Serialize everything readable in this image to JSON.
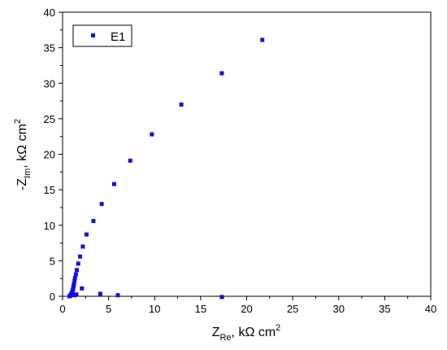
{
  "chart_data": {
    "type": "scatter",
    "title": "",
    "xlabel": {
      "main": "Z",
      "sub": "Re",
      "rest": ", kΩ cm",
      "sup": "2"
    },
    "ylabel": {
      "main": "-Z",
      "sub": "Im",
      "rest": ", kΩ cm",
      "sup": "2"
    },
    "xlim": [
      0,
      40
    ],
    "ylim": [
      0,
      40
    ],
    "xticks": [
      0,
      5,
      10,
      15,
      20,
      25,
      30,
      35,
      40
    ],
    "yticks": [
      0,
      5,
      10,
      15,
      20,
      25,
      30,
      35,
      40
    ],
    "grid": false,
    "legend": {
      "position": "top-left",
      "entries": [
        "E1"
      ]
    },
    "series": [
      {
        "name": "E1",
        "color": "#1010ee",
        "marker": "square",
        "points": [
          [
            0.75,
            0.0
          ],
          [
            0.8,
            0.05
          ],
          [
            0.85,
            0.1
          ],
          [
            0.9,
            0.2
          ],
          [
            0.95,
            0.3
          ],
          [
            1.0,
            0.45
          ],
          [
            1.05,
            0.6
          ],
          [
            1.1,
            0.75
          ],
          [
            1.12,
            0.9
          ],
          [
            1.15,
            1.1
          ],
          [
            1.18,
            1.3
          ],
          [
            1.2,
            1.5
          ],
          [
            1.25,
            1.8
          ],
          [
            1.3,
            2.2
          ],
          [
            1.35,
            2.6
          ],
          [
            1.45,
            3.1
          ],
          [
            1.55,
            3.7
          ],
          [
            1.7,
            4.6
          ],
          [
            1.9,
            5.6
          ],
          [
            2.2,
            7.0
          ],
          [
            2.6,
            8.7
          ],
          [
            3.35,
            10.6
          ],
          [
            4.25,
            13.0
          ],
          [
            5.6,
            15.8
          ],
          [
            7.35,
            19.1
          ],
          [
            9.7,
            22.8
          ],
          [
            12.9,
            27.0
          ],
          [
            17.3,
            31.4
          ],
          [
            21.7,
            36.1
          ],
          [
            1.3,
            0.15
          ],
          [
            1.5,
            0.25
          ],
          [
            2.1,
            1.1
          ],
          [
            4.1,
            0.35
          ],
          [
            6.0,
            0.15
          ],
          [
            17.3,
            -0.1
          ]
        ]
      }
    ]
  }
}
